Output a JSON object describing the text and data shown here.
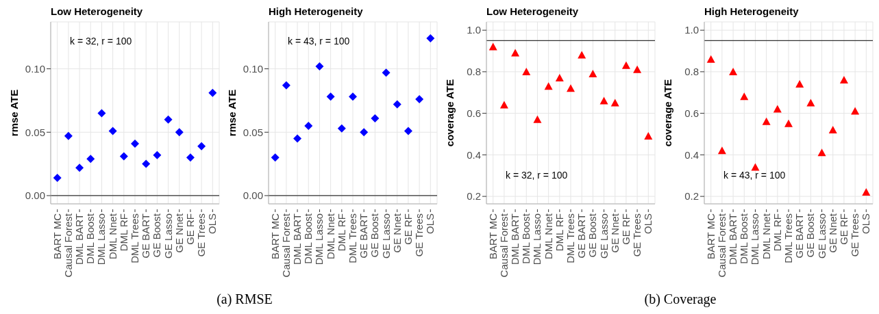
{
  "chart_data": [
    {
      "type": "scatter",
      "title": "Low Heterogeneity",
      "ylabel": "rmse ATE",
      "annotations": [
        "k = 32, r = 100",
        "(a) RMSE"
      ],
      "categories": [
        "BART MC",
        "Causal Forest",
        "DML BART",
        "DML Boost",
        "DML Lasso",
        "DML Nnet",
        "DML RF",
        "DML Trees",
        "GE BART",
        "GE Boost",
        "GE Lasso",
        "GE Nnet",
        "GE RF",
        "GE Trees",
        "OLS"
      ],
      "series": [
        {
          "color": "#0000ff",
          "values": [
            0.014,
            0.047,
            0.022,
            0.029,
            0.065,
            0.051,
            0.031,
            0.041,
            0.025,
            0.032,
            0.06,
            0.05,
            0.03,
            0.039,
            0.081
          ]
        }
      ],
      "ylim": [
        -0.0065,
        0.137
      ],
      "yticks": [
        {
          "value": 0,
          "label": "0.00"
        },
        0.05,
        {
          "value": 0.1,
          "label": "0.10"
        }
      ],
      "grid": true,
      "marker": "diamond",
      "ref_lines": [
        {
          "axis": "y",
          "value": 0,
          "color": "#333333"
        }
      ]
    },
    {
      "type": "scatter",
      "title": "High Heterogeneity",
      "ylabel": "rmse ATE",
      "annotations": [
        "k = 43, r = 100"
      ],
      "categories": [
        "BART MC",
        "Causal Forest",
        "DML BART",
        "DML Boost",
        "DML Lasso",
        "DML Nnet",
        "DML RF",
        "DML Trees",
        "GE BART",
        "GE Boost",
        "GE Lasso",
        "GE Nnet",
        "GE RF",
        "GE Trees",
        "OLS"
      ],
      "series": [
        {
          "color": "#0000ff",
          "values": [
            0.03,
            0.087,
            0.045,
            0.055,
            0.102,
            0.078,
            0.053,
            0.078,
            0.05,
            0.061,
            0.097,
            0.072,
            0.051,
            0.076,
            0.124
          ]
        }
      ],
      "ylim": [
        -0.0065,
        0.137
      ],
      "yticks": [
        {
          "value": 0,
          "label": "0.00"
        },
        0.05,
        {
          "value": 0.1,
          "label": "0.10"
        }
      ],
      "grid": true,
      "marker": "diamond",
      "ref_lines": [
        {
          "axis": "y",
          "value": 0,
          "color": "#333333"
        }
      ]
    },
    {
      "type": "scatter",
      "title": "Low Heterogeneity",
      "ylabel": "coverage ATE",
      "annotations": [
        "k = 32, r = 100",
        "(b) Coverage"
      ],
      "categories": [
        "BART MC",
        "Causal Forest",
        "DML BART",
        "DML Boost",
        "DML Lasso",
        "DML Nnet",
        "DML RF",
        "DML Trees",
        "GE BART",
        "GE Boost",
        "GE Lasso",
        "GE Nnet",
        "GE RF",
        "GE Trees",
        "OLS"
      ],
      "series": [
        {
          "color": "#ff0000",
          "values": [
            0.92,
            0.64,
            0.89,
            0.8,
            0.57,
            0.73,
            0.77,
            0.72,
            0.88,
            0.79,
            0.66,
            0.65,
            0.83,
            0.81,
            0.49
          ]
        }
      ],
      "ylim": [
        0.164,
        1.04
      ],
      "yticks": [
        0.2,
        0.4,
        0.6,
        0.8,
        {
          "value": 1,
          "label": "1.0"
        }
      ],
      "grid": true,
      "marker": "triangle",
      "ref_lines": [
        {
          "axis": "y",
          "value": 0.95,
          "color": "#333333"
        }
      ]
    },
    {
      "type": "scatter",
      "title": "High Heterogeneity",
      "ylabel": "coverage ATE",
      "annotations": [
        "k = 43, r = 100"
      ],
      "categories": [
        "BART MC",
        "Causal Forest",
        "DML BART",
        "DML Boost",
        "DML Lasso",
        "DML Nnet",
        "DML RF",
        "DML Trees",
        "GE BART",
        "GE Boost",
        "GE Lasso",
        "GE Nnet",
        "GE RF",
        "GE Trees",
        "OLS"
      ],
      "series": [
        {
          "color": "#ff0000",
          "values": [
            0.86,
            0.42,
            0.8,
            0.68,
            0.34,
            0.56,
            0.62,
            0.55,
            0.74,
            0.65,
            0.41,
            0.52,
            0.76,
            0.61,
            0.22
          ]
        }
      ],
      "ylim": [
        0.164,
        1.04
      ],
      "yticks": [
        0.2,
        0.4,
        0.6,
        0.8,
        {
          "value": 1,
          "label": "1.0"
        }
      ],
      "grid": true,
      "marker": "triangle",
      "ref_lines": [
        {
          "axis": "y",
          "value": 0.95,
          "color": "#333333"
        }
      ]
    }
  ]
}
